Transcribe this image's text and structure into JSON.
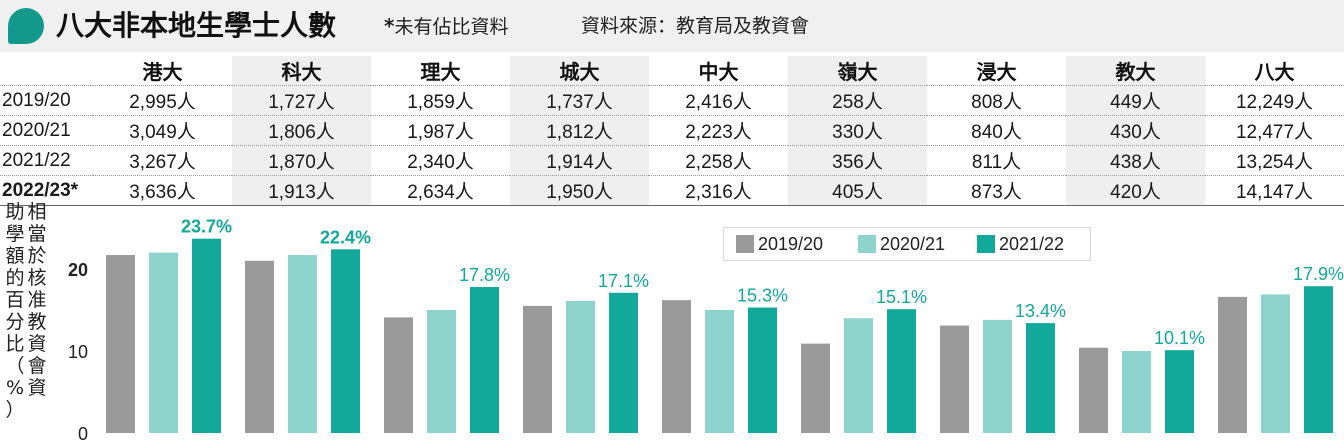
{
  "header": {
    "title": "八大非本地生學士人數",
    "note_star": "*",
    "note_text": "未有佔比資料",
    "source": "資料來源：教育局及教資會"
  },
  "colors": {
    "accent": "#12998c",
    "s1": "#9a9a9a",
    "s2": "#8ed3cc",
    "s3": "#12a89a",
    "label_teal": "#12a89a"
  },
  "table": {
    "columns": [
      "港大",
      "科大",
      "理大",
      "城大",
      "中大",
      "嶺大",
      "浸大",
      "教大",
      "八大"
    ],
    "rows": [
      {
        "year": "2019/20",
        "values": [
          "2,995人",
          "1,727人",
          "1,859人",
          "1,737人",
          "2,416人",
          "258人",
          "808人",
          "449人",
          "12,249人"
        ]
      },
      {
        "year": "2020/21",
        "values": [
          "3,049人",
          "1,806人",
          "1,987人",
          "1,812人",
          "2,223人",
          "330人",
          "840人",
          "430人",
          "12,477人"
        ]
      },
      {
        "year": "2021/22",
        "values": [
          "3,267人",
          "1,870人",
          "2,340人",
          "1,914人",
          "2,258人",
          "356人",
          "811人",
          "438人",
          "13,254人"
        ]
      },
      {
        "year": "2022/23*",
        "values": [
          "3,636人",
          "1,913人",
          "2,634人",
          "1,950人",
          "2,316人",
          "405人",
          "873人",
          "420人",
          "14,147人"
        ]
      }
    ]
  },
  "chart_data": {
    "type": "bar",
    "categories": [
      "港大",
      "科大",
      "理大",
      "城大",
      "中大",
      "嶺大",
      "浸大",
      "教大",
      "八大"
    ],
    "ylabel": "相當於核准教資會資助學額的百分比（%）",
    "yticks": [
      0,
      10,
      20
    ],
    "ylim": [
      0,
      25.5
    ],
    "series": [
      {
        "name": "2019/20",
        "values": [
          21.7,
          21.0,
          14.1,
          15.5,
          16.2,
          10.9,
          13.1,
          10.4,
          16.6
        ]
      },
      {
        "name": "2020/21",
        "values": [
          22.0,
          21.7,
          15.0,
          16.1,
          15.0,
          14.0,
          13.8,
          10.0,
          16.9
        ]
      },
      {
        "name": "2021/22",
        "values": [
          23.7,
          22.4,
          17.8,
          17.1,
          15.3,
          15.1,
          13.4,
          10.1,
          17.9
        ],
        "labels": [
          "23.7%",
          "22.4%",
          "17.8%",
          "17.1%",
          "15.3%",
          "15.1%",
          "13.4%",
          "10.1%",
          "17.9%"
        ]
      }
    ],
    "legend": "top-right",
    "grid": false
  }
}
